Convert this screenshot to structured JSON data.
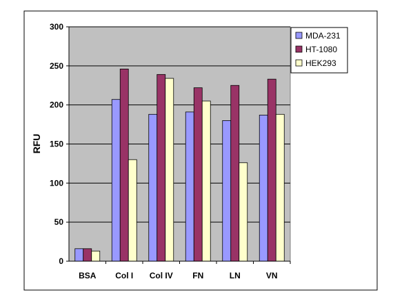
{
  "chart_data": {
    "type": "bar",
    "title": "",
    "xlabel": "",
    "ylabel": "RFU",
    "categories": [
      "BSA",
      "Col I",
      "Col IV",
      "FN",
      "LN",
      "VN"
    ],
    "series": [
      {
        "name": "MDA-231",
        "color": "#9999ff",
        "values": [
          16,
          207,
          188,
          191,
          180,
          187
        ]
      },
      {
        "name": "HT-1080",
        "color": "#993366",
        "values": [
          16,
          246,
          239,
          222,
          225,
          233
        ]
      },
      {
        "name": "HEK293",
        "color": "#ffffcc",
        "values": [
          13,
          130,
          234,
          205,
          126,
          188
        ]
      }
    ],
    "ylim": [
      0,
      300
    ],
    "yticks": [
      0,
      50,
      100,
      150,
      200,
      250,
      300
    ],
    "grid": true,
    "legend_position": "right",
    "plot_background": "#c0c0c0"
  }
}
